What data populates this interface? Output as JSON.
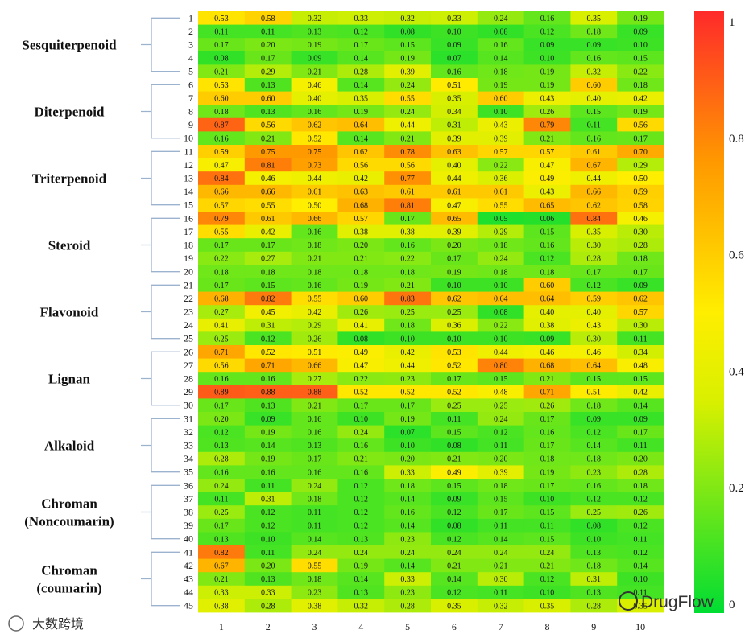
{
  "chart_data": {
    "type": "heatmap",
    "title": "",
    "columns": [
      "1",
      "2",
      "3",
      "4",
      "5",
      "6",
      "7",
      "8",
      "9",
      "10"
    ],
    "rows": [
      "1",
      "2",
      "3",
      "4",
      "5",
      "6",
      "7",
      "8",
      "9",
      "10",
      "11",
      "12",
      "13",
      "14",
      "15",
      "16",
      "17",
      "18",
      "19",
      "20",
      "21",
      "22",
      "23",
      "24",
      "25",
      "26",
      "27",
      "28",
      "29",
      "30",
      "31",
      "32",
      "33",
      "34",
      "35",
      "36",
      "37",
      "38",
      "39",
      "40",
      "41",
      "42",
      "43",
      "44",
      "45"
    ],
    "groups": [
      {
        "label": [
          "Sesquiterpenoid"
        ],
        "rows": [
          1,
          5
        ]
      },
      {
        "label": [
          "Diterpenoid"
        ],
        "rows": [
          6,
          10
        ]
      },
      {
        "label": [
          "Triterpenoid"
        ],
        "rows": [
          11,
          15
        ]
      },
      {
        "label": [
          "Steroid"
        ],
        "rows": [
          16,
          20
        ]
      },
      {
        "label": [
          "Flavonoid"
        ],
        "rows": [
          21,
          25
        ]
      },
      {
        "label": [
          "Lignan"
        ],
        "rows": [
          26,
          30
        ]
      },
      {
        "label": [
          "Alkaloid"
        ],
        "rows": [
          31,
          35
        ]
      },
      {
        "label": [
          "Chroman",
          "(Noncoumarin)"
        ],
        "rows": [
          36,
          40
        ]
      },
      {
        "label": [
          "Chroman",
          "(coumarin)"
        ],
        "rows": [
          41,
          45
        ]
      }
    ],
    "values": [
      [
        "0.53",
        "0.58",
        "0.32",
        "0.33",
        "0.32",
        "0.33",
        "0.24",
        "0.16",
        "0.35",
        "0.19"
      ],
      [
        "0.11",
        "0.11",
        "0.13",
        "0.12",
        "0.08",
        "0.10",
        "0.08",
        "0.12",
        "0.18",
        "0.09"
      ],
      [
        "0.17",
        "0.20",
        "0.19",
        "0.17",
        "0.15",
        "0.09",
        "0.16",
        "0.09",
        "0.09",
        "0.10"
      ],
      [
        "0.08",
        "0.17",
        "0.09",
        "0.14",
        "0.19",
        "0.07",
        "0.14",
        "0.10",
        "0.16",
        "0.15"
      ],
      [
        "0.21",
        "0.29",
        "0.21",
        "0.28",
        "0.39",
        "0.16",
        "0.18",
        "0.19",
        "0.32",
        "0.22"
      ],
      [
        "0.53",
        "0.13",
        "0.46",
        "0.14",
        "0.24",
        "0.51",
        "0.19",
        "0.19",
        "0.60",
        "0.18"
      ],
      [
        "0.60",
        "0.60",
        "0.40",
        "0.35",
        "0.55",
        "0.35",
        "0.60",
        "0.43",
        "0.40",
        "0.42"
      ],
      [
        "0.18",
        "0.13",
        "0.16",
        "0.19",
        "0.24",
        "0.34",
        "0.10",
        "0.26",
        "0.15",
        "0.19"
      ],
      [
        "0.87",
        "0.56",
        "0.62",
        "0.64",
        "0.44",
        "0.31",
        "0.43",
        "0.79",
        "0.11",
        "0.56"
      ],
      [
        "0.16",
        "0.21",
        "0.52",
        "0.14",
        "0.21",
        "0.39",
        "0.39",
        "0.21",
        "0.16",
        "0.17"
      ],
      [
        "0.59",
        "0.75",
        "0.75",
        "0.62",
        "0.78",
        "0.63",
        "0.57",
        "0.57",
        "0.61",
        "0.70"
      ],
      [
        "0.47",
        "0.81",
        "0.73",
        "0.56",
        "0.56",
        "0.40",
        "0.22",
        "0.47",
        "0.67",
        "0.29"
      ],
      [
        "0.84",
        "0.46",
        "0.44",
        "0.42",
        "0.77",
        "0.44",
        "0.36",
        "0.49",
        "0.44",
        "0.50"
      ],
      [
        "0.66",
        "0.66",
        "0.61",
        "0.63",
        "0.61",
        "0.61",
        "0.61",
        "0.43",
        "0.66",
        "0.59"
      ],
      [
        "0.57",
        "0.55",
        "0.50",
        "0.68",
        "0.81",
        "0.47",
        "0.55",
        "0.65",
        "0.62",
        "0.58"
      ],
      [
        "0.79",
        "0.61",
        "0.66",
        "0.57",
        "0.17",
        "0.65",
        "0.05",
        "0.06",
        "0.84",
        "0.46"
      ],
      [
        "0.55",
        "0.42",
        "0.16",
        "0.38",
        "0.38",
        "0.39",
        "0.29",
        "0.15",
        "0.35",
        "0.30"
      ],
      [
        "0.17",
        "0.17",
        "0.18",
        "0.20",
        "0.16",
        "0.20",
        "0.18",
        "0.16",
        "0.30",
        "0.28"
      ],
      [
        "0.22",
        "0.27",
        "0.21",
        "0.21",
        "0.22",
        "0.17",
        "0.24",
        "0.12",
        "0.28",
        "0.18"
      ],
      [
        "0.18",
        "0.18",
        "0.18",
        "0.18",
        "0.18",
        "0.19",
        "0.18",
        "0.18",
        "0.17",
        "0.17"
      ],
      [
        "0.17",
        "0.15",
        "0.16",
        "0.19",
        "0.21",
        "0.10",
        "0.10",
        "0.60",
        "0.12",
        "0.09"
      ],
      [
        "0.68",
        "0.82",
        "0.55",
        "0.60",
        "0.83",
        "0.62",
        "0.64",
        "0.64",
        "0.59",
        "0.62"
      ],
      [
        "0.27",
        "0.45",
        "0.42",
        "0.26",
        "0.25",
        "0.25",
        "0.08",
        "0.40",
        "0.40",
        "0.57"
      ],
      [
        "0.41",
        "0.31",
        "0.29",
        "0.41",
        "0.18",
        "0.36",
        "0.22",
        "0.38",
        "0.43",
        "0.30"
      ],
      [
        "0.25",
        "0.12",
        "0.26",
        "0.08",
        "0.10",
        "0.10",
        "0.10",
        "0.09",
        "0.30",
        "0.11"
      ],
      [
        "0.71",
        "0.52",
        "0.51",
        "0.49",
        "0.42",
        "0.53",
        "0.44",
        "0.46",
        "0.46",
        "0.34"
      ],
      [
        "0.56",
        "0.71",
        "0.66",
        "0.47",
        "0.44",
        "0.52",
        "0.80",
        "0.68",
        "0.64",
        "0.48"
      ],
      [
        "0.16",
        "0.16",
        "0.27",
        "0.22",
        "0.23",
        "0.17",
        "0.15",
        "0.21",
        "0.15",
        "0.15"
      ],
      [
        "0.89",
        "0.88",
        "0.88",
        "0.52",
        "0.52",
        "0.52",
        "0.48",
        "0.71",
        "0.51",
        "0.42"
      ],
      [
        "0.17",
        "0.13",
        "0.21",
        "0.17",
        "0.17",
        "0.25",
        "0.25",
        "0.26",
        "0.18",
        "0.14"
      ],
      [
        "0.20",
        "0.09",
        "0.16",
        "0.10",
        "0.19",
        "0.11",
        "0.24",
        "0.17",
        "0.09",
        "0.09"
      ],
      [
        "0.12",
        "0.19",
        "0.16",
        "0.24",
        "0.07",
        "0.15",
        "0.12",
        "0.16",
        "0.12",
        "0.17"
      ],
      [
        "0.13",
        "0.14",
        "0.13",
        "0.16",
        "0.10",
        "0.08",
        "0.11",
        "0.17",
        "0.14",
        "0.11"
      ],
      [
        "0.28",
        "0.19",
        "0.17",
        "0.21",
        "0.20",
        "0.21",
        "0.20",
        "0.18",
        "0.18",
        "0.20"
      ],
      [
        "0.16",
        "0.16",
        "0.16",
        "0.16",
        "0.33",
        "0.49",
        "0.39",
        "0.19",
        "0.23",
        "0.28"
      ],
      [
        "0.24",
        "0.11",
        "0.24",
        "0.12",
        "0.18",
        "0.15",
        "0.18",
        "0.17",
        "0.16",
        "0.18"
      ],
      [
        "0.11",
        "0.31",
        "0.18",
        "0.12",
        "0.14",
        "0.09",
        "0.15",
        "0.10",
        "0.12",
        "0.12"
      ],
      [
        "0.25",
        "0.12",
        "0.11",
        "0.12",
        "0.16",
        "0.12",
        "0.17",
        "0.15",
        "0.25",
        "0.26"
      ],
      [
        "0.17",
        "0.12",
        "0.11",
        "0.12",
        "0.14",
        "0.08",
        "0.11",
        "0.11",
        "0.08",
        "0.12"
      ],
      [
        "0.13",
        "0.10",
        "0.14",
        "0.13",
        "0.23",
        "0.12",
        "0.14",
        "0.15",
        "0.10",
        "0.11"
      ],
      [
        "0.82",
        "0.11",
        "0.24",
        "0.24",
        "0.24",
        "0.24",
        "0.24",
        "0.24",
        "0.13",
        "0.12"
      ],
      [
        "0.67",
        "0.20",
        "0.55",
        "0.19",
        "0.14",
        "0.21",
        "0.21",
        "0.21",
        "0.18",
        "0.14"
      ],
      [
        "0.21",
        "0.13",
        "0.18",
        "0.14",
        "0.33",
        "0.14",
        "0.30",
        "0.12",
        "0.31",
        "0.10"
      ],
      [
        "0.33",
        "0.33",
        "0.23",
        "0.13",
        "0.23",
        "0.12",
        "0.11",
        "0.10",
        "0.13",
        "0.11"
      ],
      [
        "0.38",
        "0.28",
        "0.38",
        "0.32",
        "0.28",
        "0.35",
        "0.32",
        "0.35",
        "0.28",
        "0.35"
      ]
    ],
    "colorbar": {
      "range": [
        0,
        1
      ],
      "ticks": [
        "0",
        "0.2",
        "0.4",
        "0.6",
        "0.8",
        "1"
      ],
      "colors": [
        "#00dd33",
        "#d8f000",
        "#ffee00",
        "#ff9900",
        "#ff2a2a"
      ]
    }
  },
  "watermarks": [
    "大数跨境",
    "DrugFlow"
  ]
}
